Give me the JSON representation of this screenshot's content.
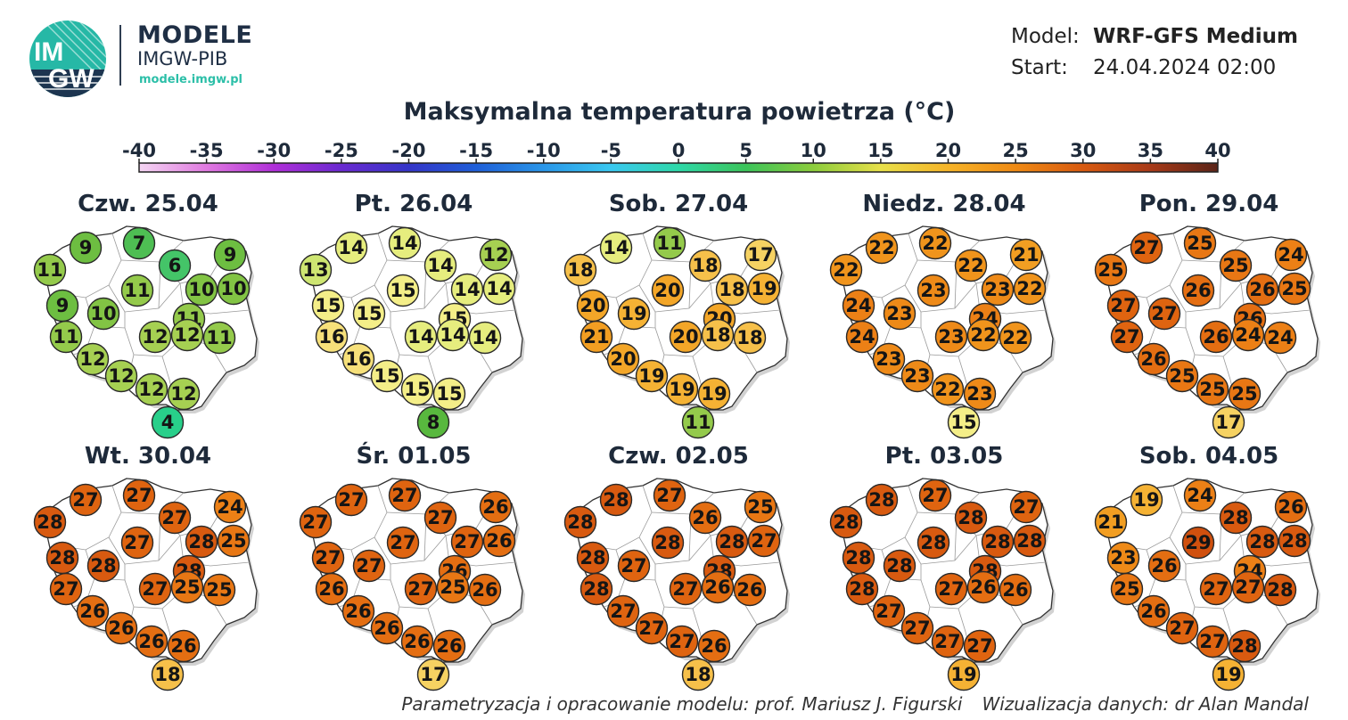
{
  "header": {
    "logo_text_top": "IM",
    "logo_text_bottom": "GW",
    "title": "MODELE",
    "subtitle": "IMGW-PIB",
    "url": "modele.imgw.pl"
  },
  "model_info": {
    "model_label": "Model:",
    "model_value": "WRF-GFS Medium",
    "start_label": "Start:",
    "start_value": "24.04.2024 02:00"
  },
  "chart_title": "Maksymalna temperatura powietrza (°C)",
  "color_scale": {
    "ticks": [
      "-40",
      "-35",
      "-30",
      "-25",
      "-20",
      "-15",
      "-10",
      "-5",
      "0",
      "5",
      "10",
      "15",
      "20",
      "25",
      "30",
      "35",
      "40"
    ],
    "min": -40,
    "max": 40,
    "stops": [
      "#f4d6f2",
      "#e07ae0",
      "#b02fd8",
      "#6a2ad0",
      "#3535c8",
      "#1f5fd8",
      "#2a96e8",
      "#3ac8f0",
      "#2ed8a8",
      "#3cc45a",
      "#8ccc3c",
      "#e8e04a",
      "#f6b428",
      "#ef8a14",
      "#d85a10",
      "#a83a18",
      "#5a2418"
    ]
  },
  "days": [
    {
      "label": "Czw. 25.04",
      "values": [
        9,
        7,
        11,
        6,
        9,
        10,
        10,
        9,
        10,
        11,
        11,
        12,
        11,
        12,
        11,
        12,
        12,
        12,
        12,
        4
      ]
    },
    {
      "label": "Pt. 26.04",
      "values": [
        14,
        14,
        13,
        14,
        12,
        14,
        14,
        15,
        15,
        15,
        15,
        14,
        16,
        14,
        14,
        16,
        15,
        15,
        15,
        8
      ]
    },
    {
      "label": "Sob. 27.04",
      "values": [
        14,
        11,
        18,
        18,
        17,
        18,
        19,
        20,
        19,
        20,
        20,
        20,
        21,
        18,
        18,
        20,
        19,
        19,
        19,
        11
      ]
    },
    {
      "label": "Niedz. 28.04",
      "values": [
        22,
        22,
        22,
        22,
        21,
        23,
        22,
        24,
        23,
        23,
        24,
        23,
        24,
        22,
        22,
        23,
        23,
        22,
        23,
        15
      ]
    },
    {
      "label": "Pon. 29.04",
      "values": [
        27,
        25,
        25,
        25,
        24,
        26,
        25,
        27,
        27,
        26,
        26,
        26,
        27,
        24,
        24,
        26,
        25,
        25,
        25,
        17
      ]
    },
    {
      "label": "Wt. 30.04",
      "values": [
        27,
        27,
        28,
        27,
        24,
        28,
        25,
        28,
        28,
        27,
        28,
        27,
        27,
        25,
        25,
        26,
        26,
        26,
        26,
        18
      ]
    },
    {
      "label": "Śr. 01.05",
      "values": [
        27,
        27,
        27,
        27,
        26,
        27,
        26,
        27,
        27,
        27,
        26,
        27,
        26,
        25,
        26,
        26,
        26,
        26,
        26,
        17
      ]
    },
    {
      "label": "Czw. 02.05",
      "values": [
        28,
        27,
        28,
        26,
        25,
        28,
        27,
        28,
        27,
        28,
        28,
        27,
        28,
        26,
        26,
        27,
        27,
        27,
        26,
        18
      ]
    },
    {
      "label": "Pt. 03.05",
      "values": [
        28,
        27,
        28,
        28,
        27,
        28,
        28,
        28,
        28,
        28,
        28,
        27,
        28,
        26,
        26,
        27,
        27,
        27,
        27,
        19
      ]
    },
    {
      "label": "Sob. 04.05",
      "values": [
        19,
        24,
        21,
        28,
        26,
        28,
        28,
        23,
        26,
        29,
        24,
        27,
        25,
        27,
        28,
        26,
        27,
        27,
        28,
        19
      ]
    }
  ],
  "credits": {
    "param": "Parametryzacja i opracowanie modelu: prof. Mariusz J. Figurski",
    "viz": "Wizualizacja danych: dr Alan Mandal"
  }
}
